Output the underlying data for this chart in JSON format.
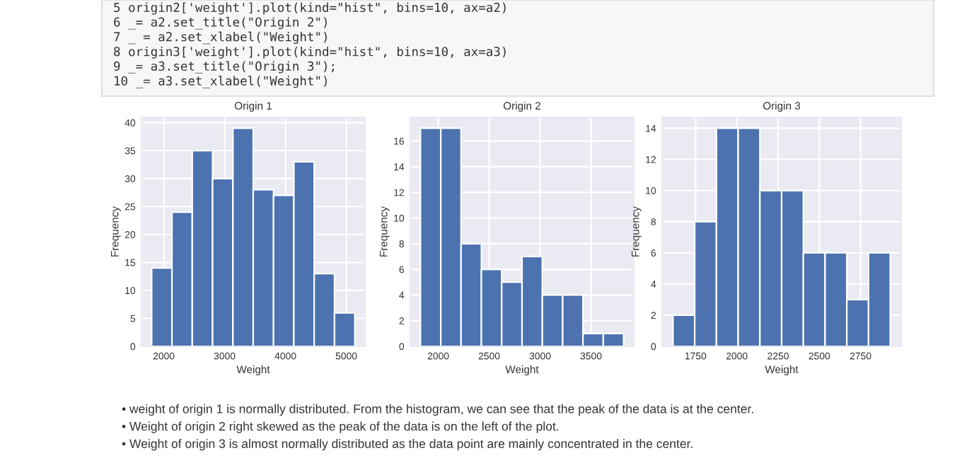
{
  "chart_data": [
    {
      "type": "other",
      "annotations": [
        "5 origin2['weight'].plot(kind=\"hist\", bins=10, ax=a2)",
        "6 _= a2.set_title(\"Origin 2\")",
        "7 _ = a2.set_xlabel(\"Weight\")",
        "8 origin3['weight'].plot(kind=\"hist\", bins=10, ax=a3)",
        "9 _= a3.set_title(\"Origin 3\");",
        "10 _= a3.set_xlabel(\"Weight\")"
      ]
    },
    {
      "type": "histogram",
      "title": "Origin 1",
      "xlabel": "Weight",
      "ylabel": "Frequency",
      "color": "#4c72b0",
      "grid": true,
      "bins": [
        1800,
        2134,
        2468,
        2802,
        3136,
        3470,
        3804,
        4138,
        4472,
        4806,
        5140
      ],
      "values": [
        14,
        24,
        35,
        30,
        39,
        28,
        27,
        33,
        13,
        6
      ],
      "xlim": [
        1633,
        5307
      ],
      "ylim": [
        0,
        40.95
      ],
      "xticks": [
        2000,
        3000,
        4000,
        5000
      ],
      "yticks": [
        0,
        5,
        10,
        15,
        20,
        25,
        30,
        35,
        40
      ]
    },
    {
      "type": "histogram",
      "title": "Origin 2",
      "xlabel": "Weight",
      "ylabel": "Frequency",
      "color": "#4c72b0",
      "grid": true,
      "bins": [
        1825,
        2024.5,
        2224,
        2423.5,
        2623,
        2822.5,
        3022,
        3221.5,
        3421,
        3620.5,
        3820
      ],
      "values": [
        17,
        17,
        8,
        6,
        5,
        7,
        4,
        4,
        1,
        1
      ],
      "xlim": [
        1725,
        3920
      ],
      "ylim": [
        0,
        17.85
      ],
      "xticks": [
        2000,
        2500,
        3000,
        3500
      ],
      "yticks": [
        0,
        2,
        4,
        6,
        8,
        10,
        12,
        14,
        16
      ]
    },
    {
      "type": "histogram",
      "title": "Origin 3",
      "xlabel": "Weight",
      "ylabel": "Frequency",
      "color": "#4c72b0",
      "grid": true,
      "bins": [
        1613,
        1744.7,
        1876.4,
        2008.1,
        2139.8,
        2271.5,
        2403.2,
        2534.9,
        2666.6,
        2798.3,
        2930
      ],
      "values": [
        2,
        8,
        14,
        14,
        10,
        10,
        6,
        6,
        3,
        6
      ],
      "xlim": [
        1547,
        2996
      ],
      "ylim": [
        0,
        14.7
      ],
      "xticks": [
        1750,
        2000,
        2250,
        2500,
        2750
      ],
      "yticks": [
        0,
        2,
        4,
        6,
        8,
        10,
        12,
        14
      ]
    },
    {
      "type": "other",
      "annotations": [
        "• weight of origin 1 is normally distributed. From the histogram, we can see that the peak of the data is at the center.",
        "• Weight of origin 2 right skewed as the peak of the data is on the left of the plot.",
        "• Weight of origin 3 is almost normally distributed as the data point are mainly concentrated in the center."
      ]
    }
  ]
}
